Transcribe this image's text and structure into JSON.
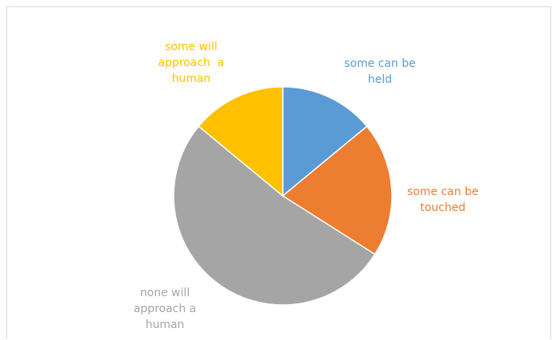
{
  "chart_data": {
    "type": "pie",
    "categories": [
      "some can be held",
      "some can be touched",
      "none will approach a human",
      "some will approach a human"
    ],
    "values": [
      14,
      20,
      52,
      14
    ],
    "label_lines": [
      [
        "some can be",
        "held"
      ],
      [
        "some can be",
        "touched"
      ],
      [
        "none will",
        "approach a",
        "human"
      ],
      [
        "some will",
        "approach  a",
        "human"
      ]
    ],
    "colors": [
      "#5b9bd5",
      "#ed7d31",
      "#a5a5a5",
      "#ffc000"
    ],
    "label_colors": [
      "#5b9bd5",
      "#ed7d31",
      "#a5a5a5",
      "#ffc000"
    ],
    "start_angle_deg": 0,
    "direction": "clockwise",
    "title": "",
    "legend": "none",
    "data_labels": "category names outside slices"
  }
}
